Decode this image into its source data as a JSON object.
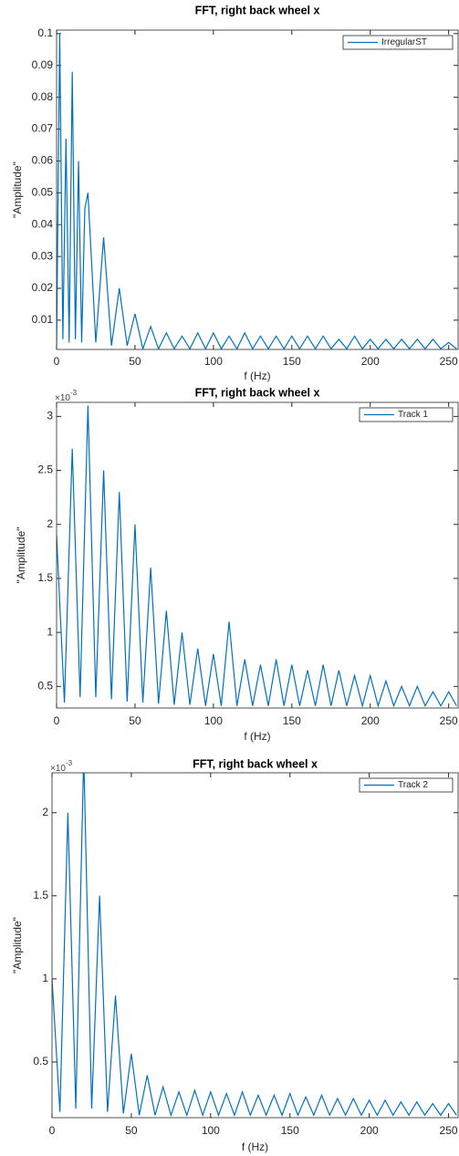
{
  "chart_data": [
    {
      "type": "line",
      "title": "FFT, right back wheel x",
      "xlabel": "f (Hz)",
      "ylabel": "\"Amplitude\"",
      "xlim": [
        0,
        256
      ],
      "ylim": [
        0.0008,
        0.1011
      ],
      "xticks": [
        0,
        50,
        100,
        150,
        200,
        250
      ],
      "yticks": [
        0.01,
        0.02,
        0.03,
        0.04,
        0.05,
        0.06,
        0.07,
        0.08,
        0.09,
        0.1
      ],
      "legend": "northeast",
      "x": [
        0,
        2,
        4,
        6,
        8,
        10,
        12,
        14,
        16,
        18,
        20,
        25,
        30,
        35,
        40,
        45,
        50,
        55,
        60,
        65,
        70,
        75,
        80,
        85,
        90,
        95,
        100,
        105,
        110,
        115,
        120,
        125,
        130,
        135,
        140,
        145,
        150,
        155,
        160,
        165,
        170,
        175,
        180,
        185,
        190,
        195,
        200,
        205,
        210,
        215,
        220,
        225,
        230,
        235,
        240,
        245,
        250,
        255
      ],
      "series": [
        {
          "name": "IrregularST",
          "color": "#0072bd",
          "values": [
            0.002,
            0.1,
            0.004,
            0.067,
            0.003,
            0.088,
            0.004,
            0.06,
            0.003,
            0.045,
            0.05,
            0.003,
            0.036,
            0.002,
            0.02,
            0.002,
            0.012,
            0.001,
            0.008,
            0.001,
            0.006,
            0.001,
            0.005,
            0.001,
            0.006,
            0.001,
            0.006,
            0.001,
            0.005,
            0.001,
            0.006,
            0.001,
            0.005,
            0.001,
            0.005,
            0.001,
            0.005,
            0.001,
            0.005,
            0.001,
            0.005,
            0.001,
            0.004,
            0.001,
            0.005,
            0.001,
            0.004,
            0.001,
            0.004,
            0.001,
            0.004,
            0.001,
            0.004,
            0.001,
            0.004,
            0.001,
            0.003,
            0.001
          ]
        }
      ]
    },
    {
      "type": "line",
      "title": "FFT, right back wheel x",
      "xlabel": "f (Hz)",
      "ylabel": "\"Amplitude\"",
      "y_exponent": {
        "base": "×10",
        "power": "-3"
      },
      "xlim": [
        0,
        256
      ],
      "ylim": [
        0.3,
        3.13
      ],
      "xticks": [
        0,
        50,
        100,
        150,
        200,
        250
      ],
      "yticks": [
        0.5,
        1,
        1.5,
        2,
        2.5,
        3
      ],
      "legend": "northeast",
      "x": [
        0,
        5,
        10,
        15,
        20,
        25,
        30,
        35,
        40,
        45,
        50,
        55,
        60,
        65,
        70,
        75,
        80,
        85,
        90,
        95,
        100,
        105,
        110,
        115,
        120,
        125,
        130,
        135,
        140,
        145,
        150,
        155,
        160,
        165,
        170,
        175,
        180,
        185,
        190,
        195,
        200,
        205,
        210,
        215,
        220,
        225,
        230,
        235,
        240,
        245,
        250,
        255
      ],
      "series": [
        {
          "name": "Track 1",
          "color": "#0072bd",
          "values": [
            1.9,
            0.35,
            2.7,
            0.4,
            3.1,
            0.4,
            2.5,
            0.38,
            2.3,
            0.36,
            2.0,
            0.35,
            1.6,
            0.34,
            1.2,
            0.33,
            1.0,
            0.33,
            0.85,
            0.32,
            0.8,
            0.32,
            1.1,
            0.32,
            0.75,
            0.32,
            0.7,
            0.32,
            0.75,
            0.32,
            0.7,
            0.32,
            0.65,
            0.32,
            0.7,
            0.32,
            0.65,
            0.32,
            0.6,
            0.32,
            0.6,
            0.32,
            0.55,
            0.32,
            0.5,
            0.32,
            0.5,
            0.32,
            0.45,
            0.32,
            0.45,
            0.32
          ]
        }
      ]
    },
    {
      "type": "line",
      "title": "FFT, right back wheel x",
      "xlabel": "f (Hz)",
      "ylabel": "\"Amplitude\"",
      "y_exponent": {
        "base": "×10",
        "power": "-3"
      },
      "xlim": [
        0,
        256
      ],
      "ylim": [
        0.165,
        2.24
      ],
      "xticks": [
        0,
        50,
        100,
        150,
        200,
        250
      ],
      "yticks": [
        0.5,
        1,
        1.5,
        2
      ],
      "legend": "northeast",
      "x": [
        0,
        5,
        10,
        15,
        20,
        25,
        30,
        35,
        40,
        45,
        50,
        55,
        60,
        65,
        70,
        75,
        80,
        85,
        90,
        95,
        100,
        105,
        110,
        115,
        120,
        125,
        130,
        135,
        140,
        145,
        150,
        155,
        160,
        165,
        170,
        175,
        180,
        185,
        190,
        195,
        200,
        205,
        210,
        215,
        220,
        225,
        230,
        235,
        240,
        245,
        250,
        255
      ],
      "series": [
        {
          "name": "Track 2",
          "color": "#0072bd",
          "values": [
            1.0,
            0.2,
            2.0,
            0.22,
            2.35,
            0.22,
            1.5,
            0.2,
            0.9,
            0.19,
            0.55,
            0.18,
            0.42,
            0.18,
            0.35,
            0.18,
            0.32,
            0.18,
            0.33,
            0.18,
            0.32,
            0.18,
            0.31,
            0.18,
            0.32,
            0.18,
            0.3,
            0.18,
            0.3,
            0.18,
            0.31,
            0.18,
            0.29,
            0.18,
            0.3,
            0.18,
            0.28,
            0.18,
            0.28,
            0.18,
            0.27,
            0.18,
            0.27,
            0.18,
            0.26,
            0.18,
            0.26,
            0.18,
            0.25,
            0.18,
            0.25,
            0.18
          ]
        }
      ]
    }
  ]
}
